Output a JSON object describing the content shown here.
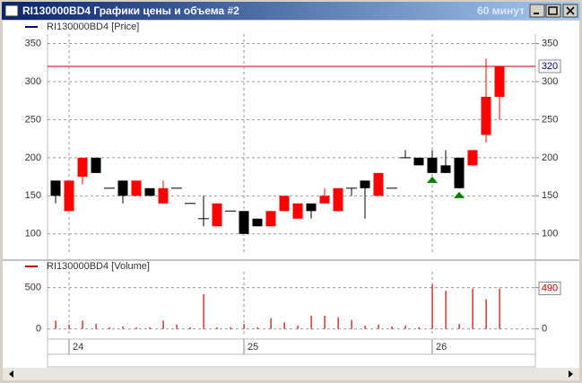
{
  "window": {
    "title": "RI130000BD4 Графики цены и объема #2",
    "timeframe": "60 минут"
  },
  "chart_data": [
    {
      "type": "candlestick",
      "legend": "RI130000BD4 [Price]",
      "legend_color": "#000080",
      "up_color": "#ff0000",
      "down_color": "#000000",
      "line_color": "#cc0000",
      "label_color": "#000080",
      "signal_color": "#008000",
      "open": [
        170,
        130,
        175,
        200,
        160,
        170,
        150,
        160,
        140,
        160,
        140,
        120,
        110,
        130,
        130,
        120,
        110,
        130,
        120,
        140,
        140,
        130,
        160,
        170,
        150,
        160,
        200,
        200,
        200,
        190,
        200,
        190,
        230,
        280
      ],
      "high": [
        170,
        170,
        200,
        200,
        160,
        170,
        170,
        160,
        170,
        160,
        140,
        150,
        140,
        130,
        130,
        120,
        130,
        150,
        140,
        140,
        160,
        160,
        160,
        170,
        180,
        160,
        210,
        200,
        210,
        210,
        200,
        210,
        330,
        320
      ],
      "low": [
        140,
        130,
        165,
        180,
        160,
        140,
        150,
        150,
        140,
        160,
        140,
        110,
        110,
        130,
        100,
        110,
        110,
        130,
        120,
        120,
        140,
        130,
        150,
        120,
        150,
        160,
        200,
        190,
        180,
        180,
        160,
        190,
        220,
        250
      ],
      "close": [
        150,
        170,
        200,
        180,
        160,
        150,
        170,
        150,
        160,
        160,
        140,
        120,
        140,
        130,
        100,
        110,
        130,
        150,
        140,
        130,
        150,
        160,
        160,
        160,
        180,
        160,
        200,
        190,
        180,
        180,
        160,
        210,
        280,
        320
      ],
      "signal_indices": [
        28,
        30
      ],
      "ylim": [
        75,
        360
      ],
      "yticks": [
        100,
        150,
        200,
        250,
        300,
        350
      ],
      "grid": true
    },
    {
      "type": "bar",
      "legend": "RI130000BD4 [Volume]",
      "color": "#cc0000",
      "label_color": "#cc0000",
      "categories": [
        null,
        "24",
        null,
        null,
        null,
        null,
        null,
        null,
        null,
        null,
        null,
        null,
        null,
        null,
        "25",
        null,
        null,
        null,
        null,
        null,
        null,
        null,
        null,
        null,
        null,
        null,
        null,
        null,
        "26",
        null,
        null,
        null,
        null,
        null
      ],
      "values": [
        100,
        50,
        100,
        60,
        20,
        30,
        20,
        20,
        100,
        50,
        20,
        420,
        20,
        20,
        60,
        20,
        130,
        80,
        40,
        160,
        160,
        140,
        110,
        40,
        50,
        30,
        40,
        20,
        540,
        460,
        60,
        490,
        360,
        490
      ],
      "ylim": [
        -90,
        670
      ],
      "yticks": [
        0,
        500
      ],
      "grid": true
    }
  ]
}
